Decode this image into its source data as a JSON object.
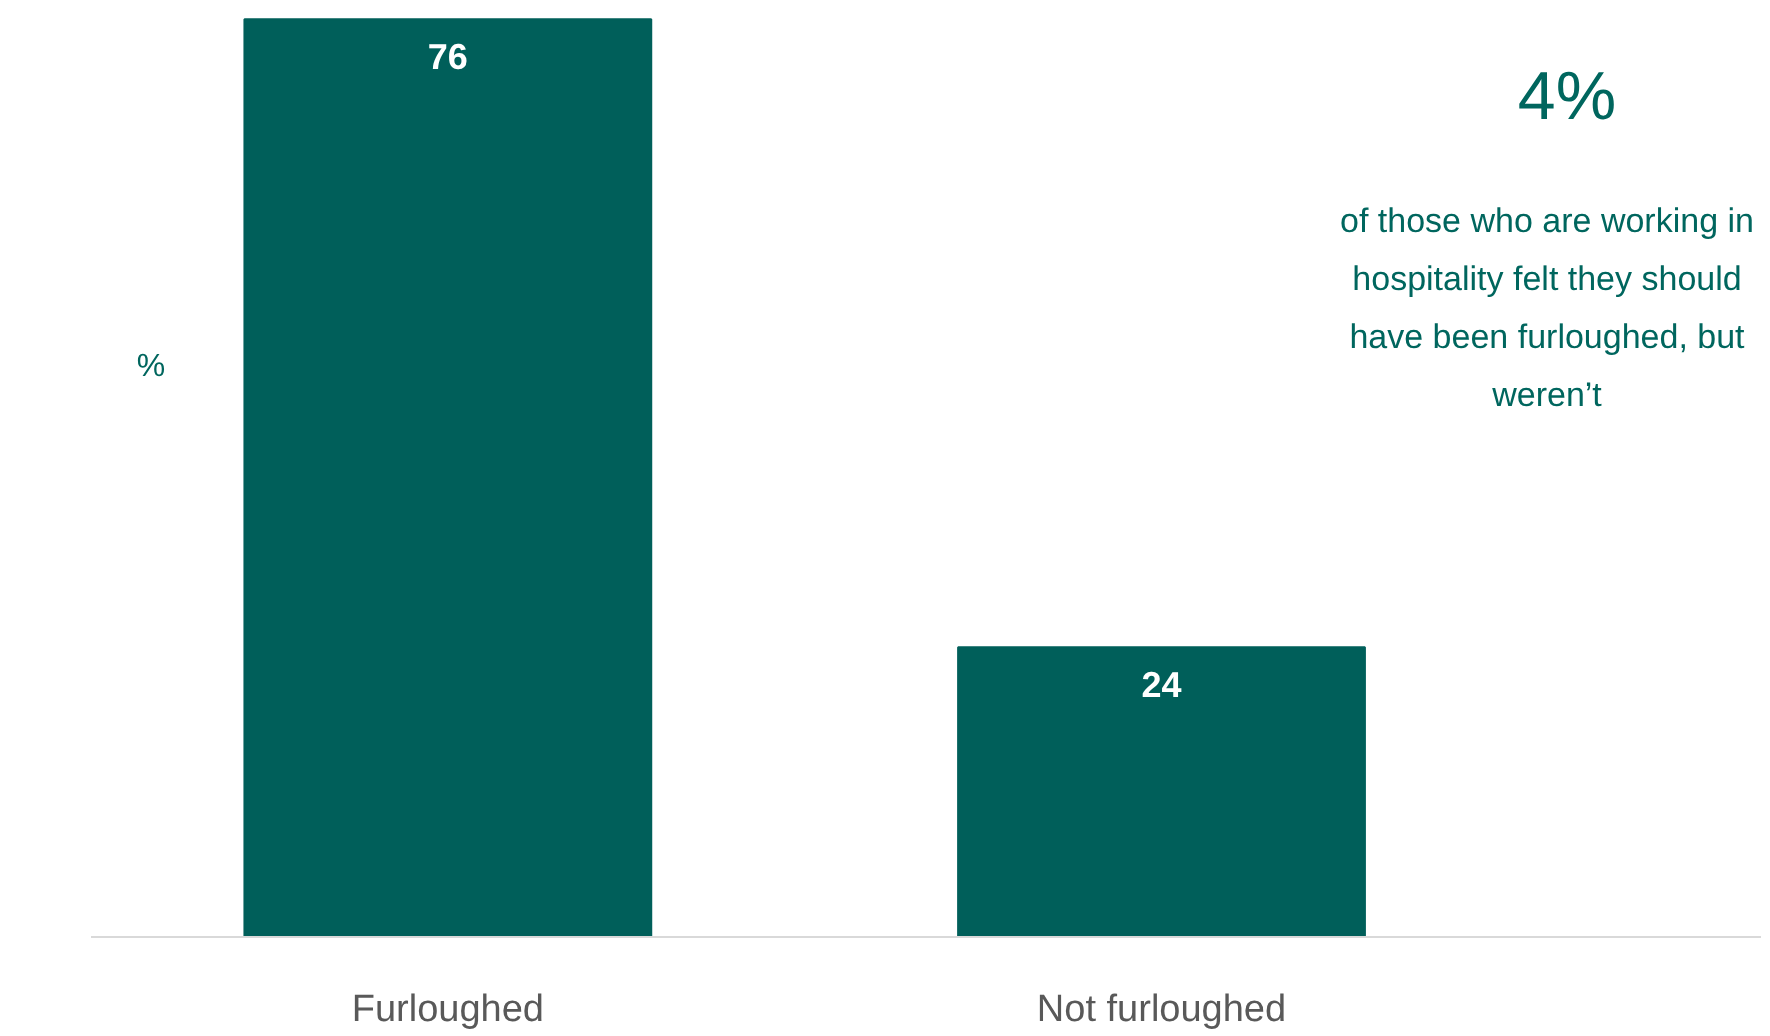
{
  "chart_data": {
    "type": "bar",
    "categories": [
      "Furloughed",
      "Not furloughed"
    ],
    "values": [
      76,
      24
    ],
    "color": "#005f5a",
    "ylabel": "%",
    "data_labels": true,
    "grid": false,
    "annotations": [
      "4%",
      "of those who are working in hospitality felt they should have been furloughed, but weren’t"
    ]
  }
}
